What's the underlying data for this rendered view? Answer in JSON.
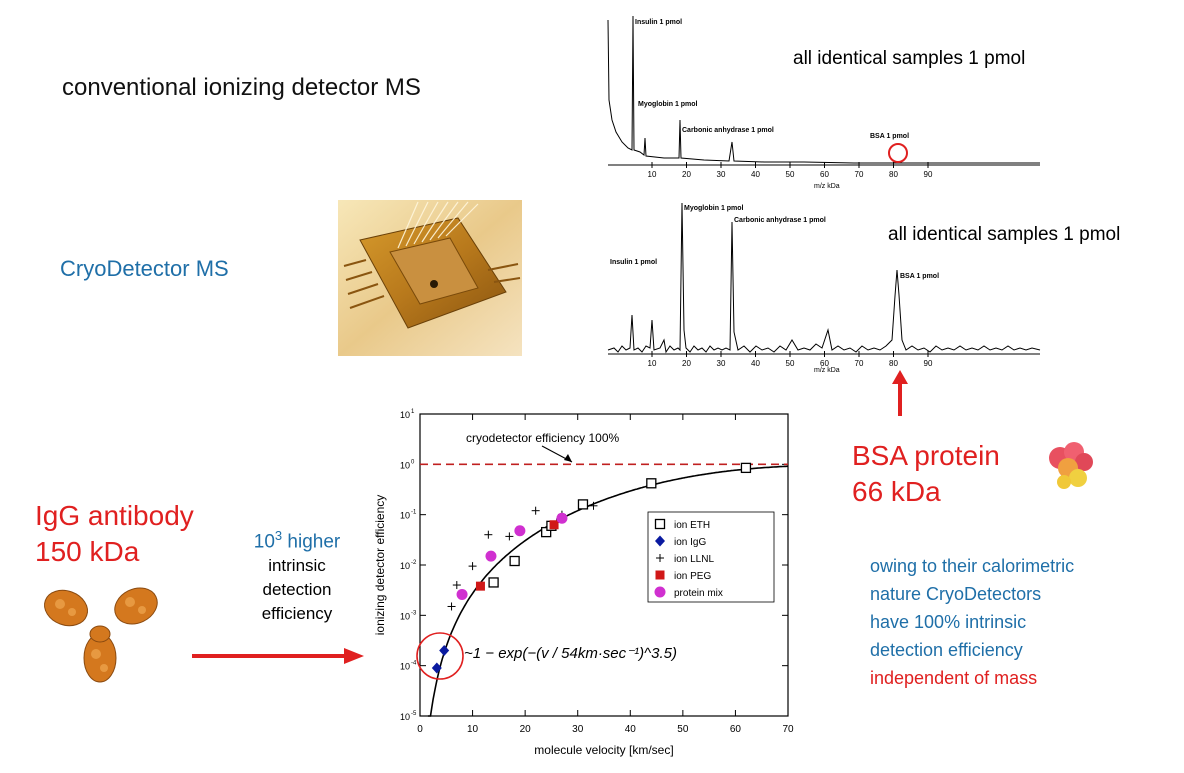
{
  "labels": {
    "conventional": "conventional ionizing detector MS",
    "cryo": "CryoDetector MS",
    "samples_top": "all identical samples 1 pmol",
    "samples_bottom": "all identical samples 1 pmol",
    "igg_line1": "IgG antibody",
    "igg_line2": "150 kDa",
    "bsa_line1": "BSA protein",
    "bsa_line2": "66 kDa",
    "higher_power_base": "10",
    "higher_power_exp": "3",
    "higher_word": " higher",
    "intrinsic": "intrinsic",
    "detection": "detection",
    "efficiency": "efficiency"
  },
  "note": {
    "line1": "owing to their calorimetric",
    "line2": "nature CryoDetectors",
    "line3": "have 100% intrinsic",
    "line4": "detection efficiency",
    "line5": "independent of mass"
  },
  "spectrum_top": {
    "xlabel": "m/z kDa",
    "ticks": [
      "10",
      "20",
      "30",
      "40",
      "50",
      "60",
      "70",
      "80",
      "90"
    ],
    "peak_labels": [
      "Insulin 1 pmol",
      "Myoglobin 1 pmol",
      "Carbonic anhydrase 1 pmol",
      "BSA 1 pmol"
    ]
  },
  "spectrum_bottom": {
    "xlabel": "m/z kDa",
    "ticks": [
      "10",
      "20",
      "30",
      "40",
      "50",
      "60",
      "70",
      "80",
      "90"
    ],
    "peak_labels": [
      "Insulin 1 pmol",
      "Myoglobin 1 pmol",
      "Carbonic anhydrase 1 pmol",
      "BSA 1 pmol"
    ]
  },
  "chart_data": {
    "type": "scatter",
    "xlabel": "molecule velocity [km/sec]",
    "ylabel": "ionizing detector efficiency",
    "xlim": [
      0,
      70
    ],
    "ylim_log10": [
      -5,
      1
    ],
    "x_ticks": [
      "0",
      "10",
      "20",
      "30",
      "40",
      "50",
      "60",
      "70"
    ],
    "y_tick_exponents": [
      "1",
      "0",
      "-1",
      "-2",
      "-3",
      "-4",
      "-5"
    ],
    "y_tick_base": "10",
    "annotation": "cryodetector efficiency 100%",
    "formula": "~1 − exp(−(v / 54km·sec⁻¹)^3.5)",
    "legend": [
      "ion ETH",
      "ion IgG",
      "ion LLNL",
      "ion PEG",
      "protein mix"
    ],
    "colors": {
      "eth": "#000000",
      "igg": "#0a1aa0",
      "llnl": "#000000",
      "peg": "#d01818",
      "mix": "#d030d0",
      "dashed": "#c02020",
      "circle": "#e02020",
      "arrow": "#e02020"
    },
    "series": [
      {
        "name": "ion ETH",
        "points": [
          [
            14,
            0.0045
          ],
          [
            18,
            0.012
          ],
          [
            24,
            0.045
          ],
          [
            25,
            0.06
          ],
          [
            31,
            0.16
          ],
          [
            44,
            0.42
          ],
          [
            62,
            0.85
          ]
        ]
      },
      {
        "name": "ion IgG",
        "points": [
          [
            3.2,
            9e-05
          ],
          [
            4.6,
            0.0002
          ]
        ]
      },
      {
        "name": "ion LLNL",
        "points": [
          [
            6,
            0.0015
          ],
          [
            10,
            0.0095
          ],
          [
            7,
            0.004
          ],
          [
            13,
            0.04
          ],
          [
            17,
            0.037
          ],
          [
            22,
            0.12
          ],
          [
            26,
            0.07
          ],
          [
            27,
            0.1
          ],
          [
            33,
            0.15
          ]
        ]
      },
      {
        "name": "ion PEG",
        "points": [
          [
            11.5,
            0.0038
          ],
          [
            25.5,
            0.063
          ]
        ]
      },
      {
        "name": "protein mix",
        "points": [
          [
            8,
            0.0026
          ],
          [
            13.5,
            0.015
          ],
          [
            19,
            0.048
          ],
          [
            27,
            0.085
          ]
        ]
      }
    ],
    "curve": {
      "v0": 54,
      "exponent": 3.5
    }
  }
}
